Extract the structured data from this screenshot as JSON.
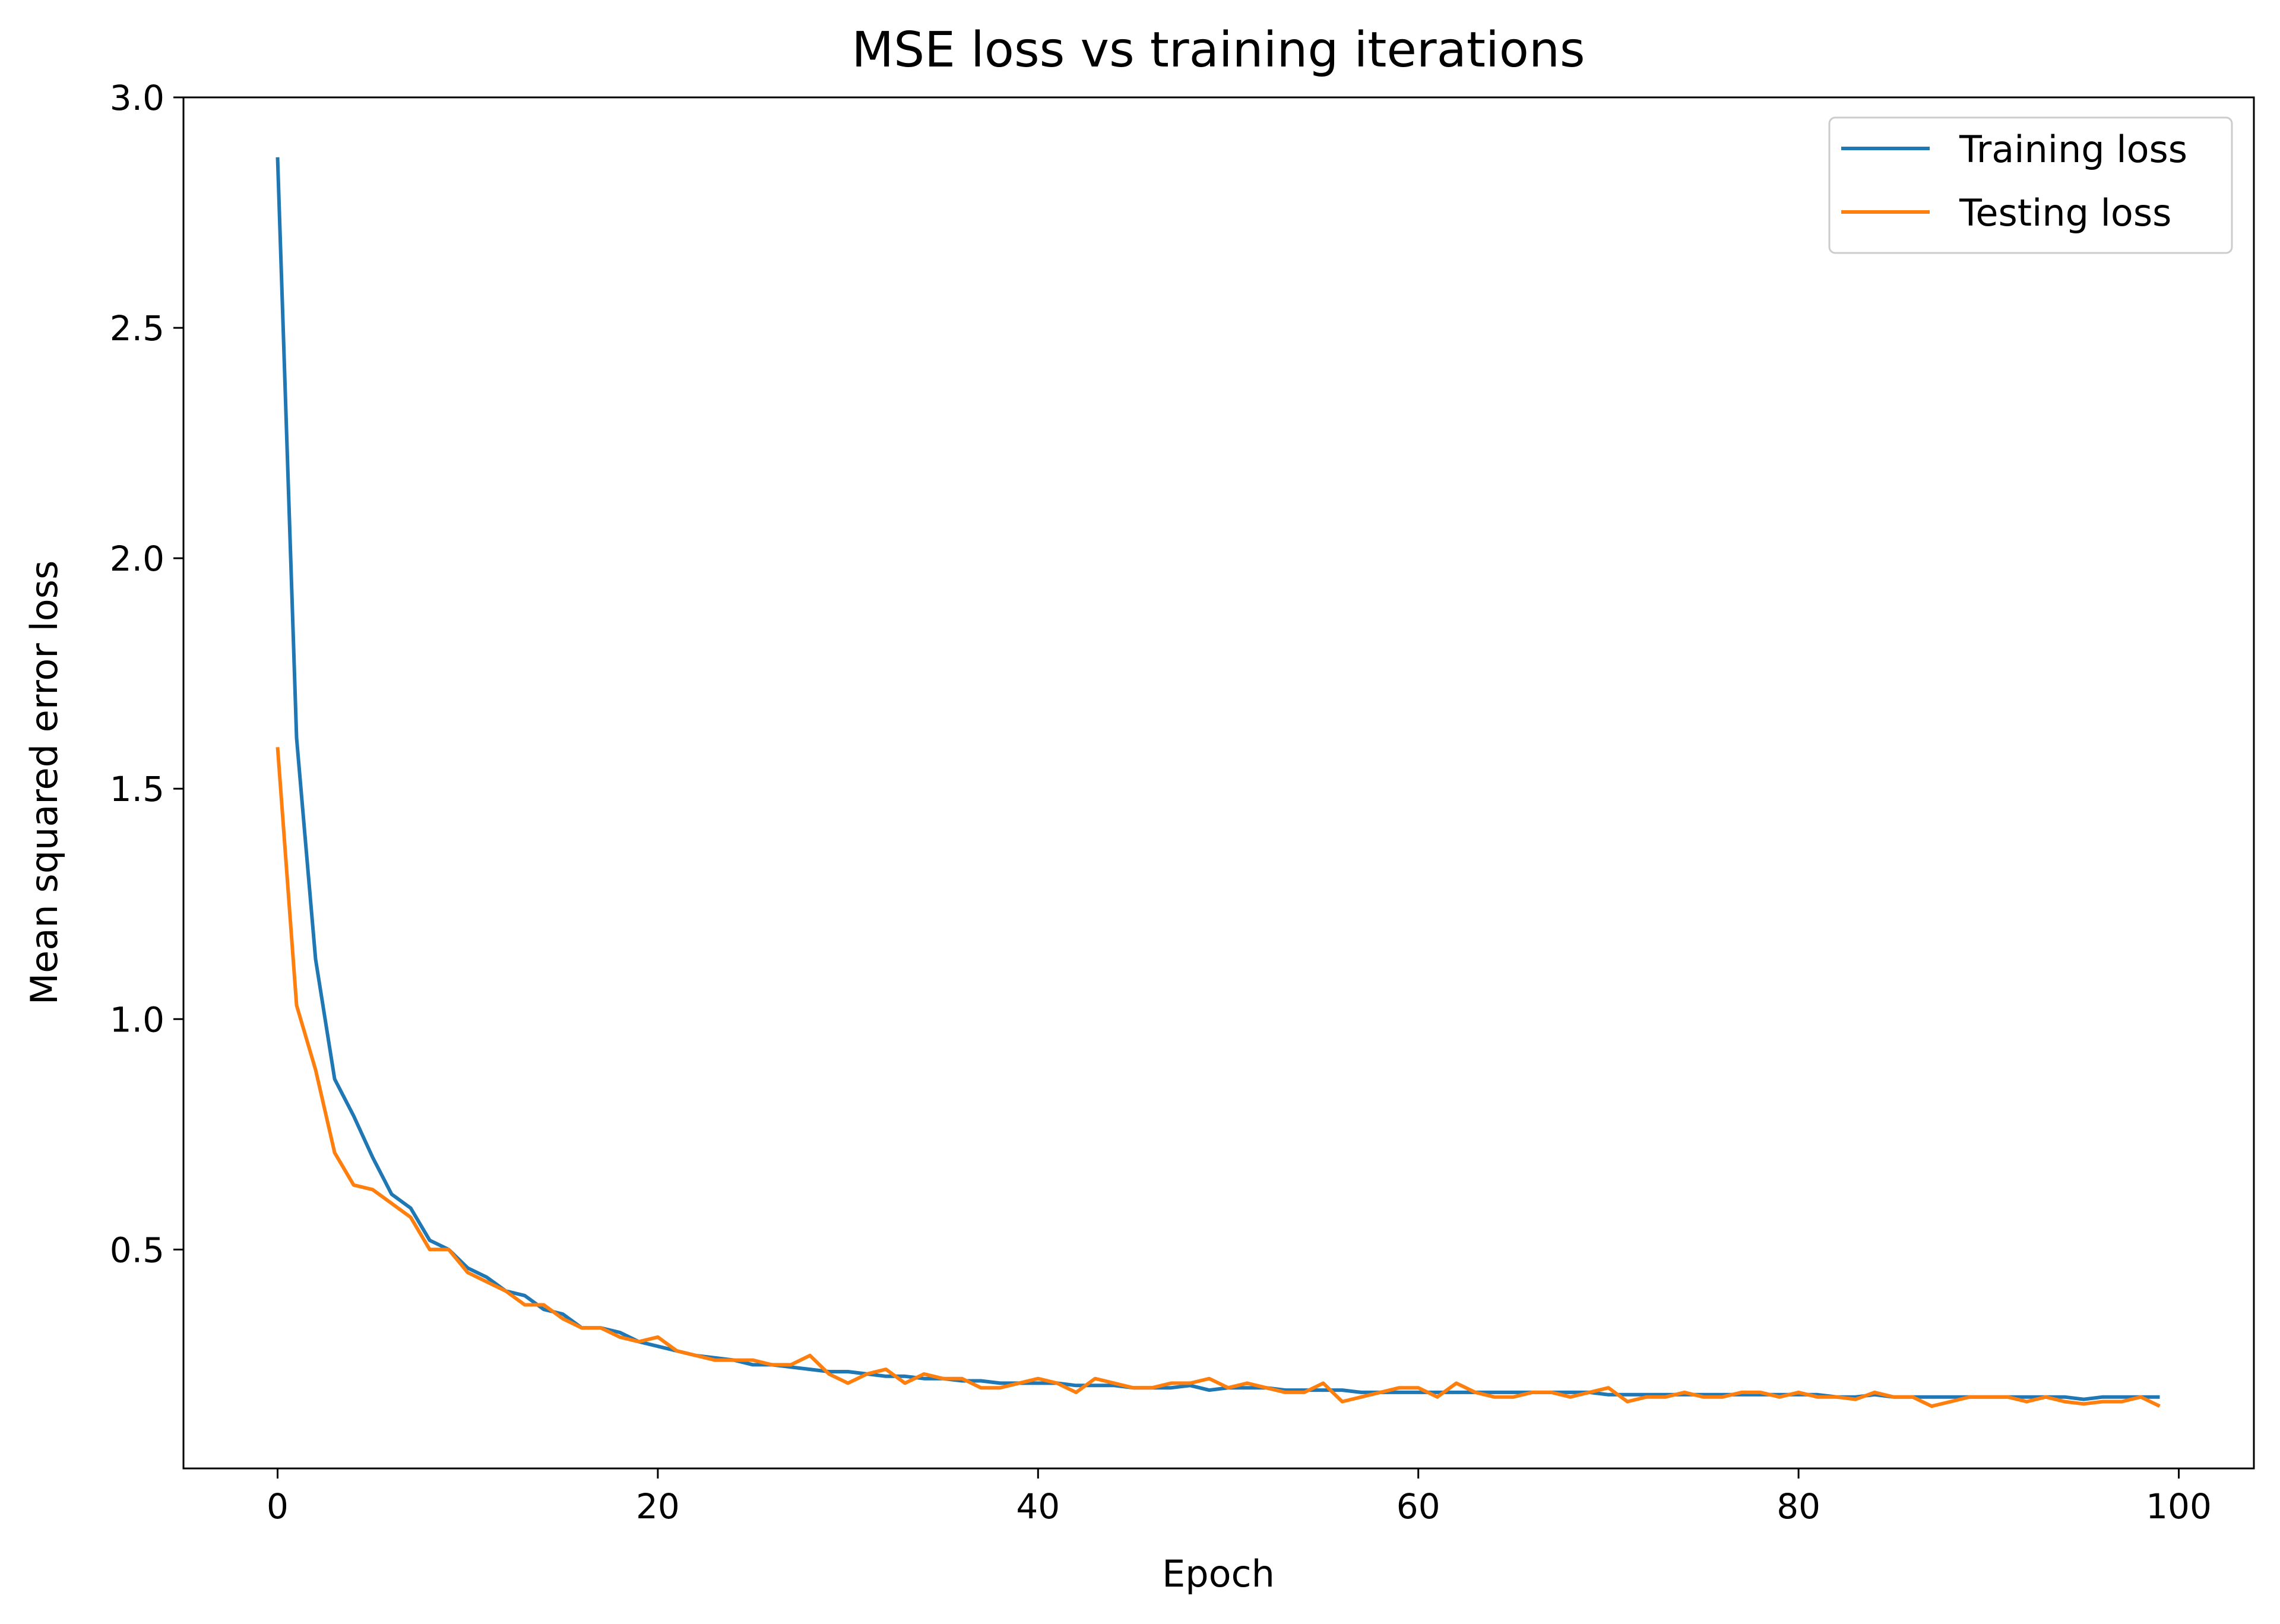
{
  "chart_data": {
    "type": "line",
    "title": "MSE loss vs training iterations",
    "xlabel": "Epoch",
    "ylabel": "Mean squared error loss",
    "xlim": [
      -4.95,
      103.95
    ],
    "ylim": [
      0.025,
      3.0
    ],
    "xticks": [
      0,
      20,
      40,
      60,
      80,
      100
    ],
    "yticks": [
      0.5,
      1.0,
      1.5,
      2.0,
      2.5,
      3.0
    ],
    "ytick_labels": [
      "0.5",
      "1.0",
      "1.5",
      "2.0",
      "2.5",
      "3.0"
    ],
    "grid": false,
    "legend_position": "top-right",
    "series": [
      {
        "name": "Training loss",
        "color": "#1f77b4",
        "values": [
          2.87,
          1.61,
          1.13,
          0.87,
          0.79,
          0.7,
          0.62,
          0.59,
          0.52,
          0.5,
          0.46,
          0.44,
          0.41,
          0.4,
          0.37,
          0.36,
          0.33,
          0.33,
          0.32,
          0.3,
          0.29,
          0.28,
          0.27,
          0.265,
          0.26,
          0.25,
          0.25,
          0.245,
          0.24,
          0.235,
          0.235,
          0.23,
          0.225,
          0.225,
          0.22,
          0.22,
          0.215,
          0.215,
          0.21,
          0.21,
          0.21,
          0.21,
          0.205,
          0.205,
          0.205,
          0.2,
          0.2,
          0.2,
          0.205,
          0.195,
          0.2,
          0.2,
          0.2,
          0.195,
          0.195,
          0.195,
          0.195,
          0.19,
          0.19,
          0.19,
          0.19,
          0.19,
          0.19,
          0.19,
          0.19,
          0.19,
          0.19,
          0.19,
          0.19,
          0.19,
          0.185,
          0.185,
          0.185,
          0.185,
          0.185,
          0.185,
          0.185,
          0.185,
          0.185,
          0.185,
          0.185,
          0.185,
          0.18,
          0.18,
          0.185,
          0.18,
          0.18,
          0.18,
          0.18,
          0.18,
          0.18,
          0.18,
          0.18,
          0.18,
          0.18,
          0.175,
          0.18,
          0.18,
          0.18,
          0.18
        ]
      },
      {
        "name": "Testing loss",
        "color": "#ff7f0e",
        "values": [
          1.59,
          1.03,
          0.89,
          0.71,
          0.64,
          0.63,
          0.6,
          0.57,
          0.5,
          0.5,
          0.45,
          0.43,
          0.41,
          0.38,
          0.38,
          0.35,
          0.33,
          0.33,
          0.31,
          0.3,
          0.31,
          0.28,
          0.27,
          0.26,
          0.26,
          0.26,
          0.25,
          0.25,
          0.27,
          0.23,
          0.21,
          0.23,
          0.24,
          0.21,
          0.23,
          0.22,
          0.22,
          0.2,
          0.2,
          0.21,
          0.22,
          0.21,
          0.19,
          0.22,
          0.21,
          0.2,
          0.2,
          0.21,
          0.21,
          0.22,
          0.2,
          0.21,
          0.2,
          0.19,
          0.19,
          0.21,
          0.17,
          0.18,
          0.19,
          0.2,
          0.2,
          0.18,
          0.21,
          0.19,
          0.18,
          0.18,
          0.19,
          0.19,
          0.18,
          0.19,
          0.2,
          0.17,
          0.18,
          0.18,
          0.19,
          0.18,
          0.18,
          0.19,
          0.19,
          0.18,
          0.19,
          0.18,
          0.18,
          0.175,
          0.19,
          0.18,
          0.18,
          0.16,
          0.17,
          0.18,
          0.18,
          0.18,
          0.17,
          0.18,
          0.17,
          0.165,
          0.17,
          0.17,
          0.18,
          0.16
        ]
      }
    ]
  }
}
